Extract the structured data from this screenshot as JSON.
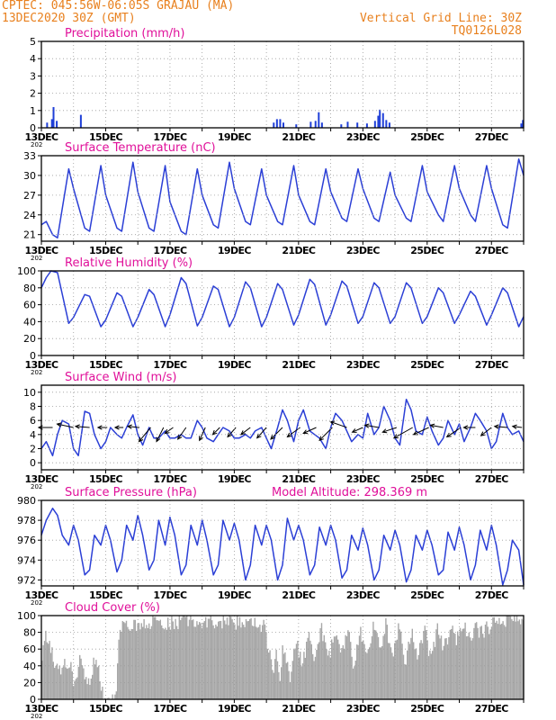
{
  "header": {
    "left1": "CPTEC:   045:56W-06:05S   GRAJAU (MA)",
    "left2": "13DEC2020 30Z (GMT)",
    "right1": "Vertical Grid Line: 30Z",
    "right2": "TQ0126L028"
  },
  "colors": {
    "header": "#e8801e",
    "title": "#e0109a",
    "line": "#2b3fd6",
    "bar": "#1f3fd8",
    "cloud": "#a8a8a8",
    "grid": "#9a9a9a"
  },
  "x_tick_labels": [
    "13DEC",
    "15DEC",
    "17DEC",
    "19DEC",
    "21DEC",
    "23DEC",
    "25DEC",
    "27DEC"
  ],
  "year_stub": "202",
  "model_altitude": "Model Altitude: 298.369 m",
  "chart_data": [
    {
      "type": "bar",
      "title": "Precipitation (mm/h)",
      "ylim": [
        0,
        5
      ],
      "yticks": [
        0,
        1,
        2,
        3,
        4,
        5
      ],
      "x_range_days": [
        0,
        15
      ],
      "bars": [
        [
          0.15,
          0.3
        ],
        [
          0.3,
          0.5
        ],
        [
          0.35,
          1.2
        ],
        [
          0.45,
          0.4
        ],
        [
          1.2,
          0.75
        ],
        [
          7.2,
          0.3
        ],
        [
          7.3,
          0.5
        ],
        [
          7.4,
          0.5
        ],
        [
          7.5,
          0.3
        ],
        [
          7.9,
          0.2
        ],
        [
          8.35,
          0.35
        ],
        [
          8.5,
          0.4
        ],
        [
          8.6,
          0.9
        ],
        [
          8.7,
          0.3
        ],
        [
          9.3,
          0.2
        ],
        [
          9.5,
          0.35
        ],
        [
          9.8,
          0.3
        ],
        [
          10.1,
          0.25
        ],
        [
          10.35,
          0.4
        ],
        [
          10.45,
          0.7
        ],
        [
          10.5,
          1.05
        ],
        [
          10.6,
          0.85
        ],
        [
          10.7,
          0.45
        ],
        [
          10.8,
          0.3
        ],
        [
          14.9,
          0.25
        ],
        [
          14.95,
          0.45
        ]
      ]
    },
    {
      "type": "line",
      "title": "Surface Temperature (nC)",
      "ylim": [
        20,
        33
      ],
      "yticks": [
        21,
        24,
        27,
        30,
        33
      ],
      "x_range_days": [
        0,
        15
      ],
      "x": [
        0,
        0.15,
        0.35,
        0.5,
        0.85,
        1.0,
        1.35,
        1.5,
        1.85,
        2.0,
        2.35,
        2.5,
        2.85,
        3.0,
        3.35,
        3.5,
        3.85,
        4.0,
        4.35,
        4.5,
        4.85,
        5.0,
        5.35,
        5.5,
        5.85,
        6.0,
        6.35,
        6.5,
        6.85,
        7.0,
        7.35,
        7.5,
        7.85,
        8.0,
        8.35,
        8.5,
        8.85,
        9.0,
        9.35,
        9.5,
        9.85,
        10.0,
        10.35,
        10.5,
        10.85,
        11.0,
        11.35,
        11.5,
        11.85,
        12.0,
        12.35,
        12.5,
        12.85,
        13.0,
        13.35,
        13.5,
        13.85,
        14.0,
        14.35,
        14.5,
        14.85,
        15.0
      ],
      "y": [
        22.5,
        23,
        21,
        20.5,
        31,
        28,
        22,
        21.5,
        31.5,
        27,
        22,
        21.5,
        32,
        27.5,
        22,
        21.5,
        31.5,
        26,
        21.5,
        21,
        31,
        27,
        22.5,
        22,
        32,
        28,
        23,
        22.5,
        31,
        27,
        23,
        22.5,
        31.5,
        27,
        23,
        22.5,
        31,
        27.5,
        23.5,
        23,
        31,
        28,
        23.5,
        23,
        30.5,
        27,
        23.5,
        23,
        31.5,
        27.5,
        24,
        23,
        31.5,
        28,
        24,
        23,
        31.5,
        28,
        22.5,
        22,
        32.5,
        30
      ]
    },
    {
      "type": "line",
      "title": "Relative Humidity (%)",
      "ylim": [
        0,
        100
      ],
      "yticks": [
        0,
        20,
        40,
        60,
        80,
        100
      ],
      "x_range_days": [
        0,
        15
      ],
      "x": [
        0,
        0.15,
        0.3,
        0.5,
        0.85,
        1.0,
        1.35,
        1.5,
        1.85,
        2.0,
        2.35,
        2.5,
        2.85,
        3.0,
        3.35,
        3.5,
        3.85,
        4.0,
        4.35,
        4.5,
        4.85,
        5.0,
        5.35,
        5.5,
        5.85,
        6.0,
        6.35,
        6.5,
        6.85,
        7.0,
        7.35,
        7.5,
        7.85,
        8.0,
        8.35,
        8.5,
        8.85,
        9.0,
        9.35,
        9.5,
        9.85,
        10.0,
        10.35,
        10.5,
        10.85,
        11.0,
        11.35,
        11.5,
        11.85,
        12.0,
        12.35,
        12.5,
        12.85,
        13.0,
        13.35,
        13.5,
        13.85,
        14.0,
        14.35,
        14.5,
        14.85,
        15.0
      ],
      "y": [
        80,
        92,
        100,
        98,
        38,
        45,
        72,
        70,
        34,
        42,
        74,
        70,
        34,
        45,
        78,
        72,
        34,
        48,
        92,
        85,
        35,
        45,
        82,
        78,
        34,
        45,
        87,
        80,
        34,
        45,
        85,
        78,
        36,
        48,
        90,
        84,
        36,
        48,
        88,
        82,
        38,
        46,
        86,
        80,
        38,
        46,
        86,
        80,
        38,
        46,
        80,
        74,
        38,
        48,
        76,
        70,
        36,
        48,
        80,
        74,
        34,
        46
      ]
    },
    {
      "type": "line",
      "title": "Surface Wind (m/s)",
      "ylim": [
        -1,
        11
      ],
      "yticks": [
        0,
        2,
        4,
        6,
        8,
        10
      ],
      "x_range_days": [
        0,
        15
      ],
      "x": [
        0,
        0.15,
        0.35,
        0.5,
        0.65,
        0.85,
        1.0,
        1.15,
        1.35,
        1.5,
        1.65,
        1.85,
        2.0,
        2.15,
        2.35,
        2.5,
        2.65,
        2.85,
        3.0,
        3.15,
        3.35,
        3.5,
        3.65,
        3.85,
        4.0,
        4.15,
        4.35,
        4.5,
        4.65,
        4.85,
        5.0,
        5.15,
        5.35,
        5.5,
        5.65,
        5.85,
        6.0,
        6.15,
        6.35,
        6.5,
        6.65,
        6.85,
        7.0,
        7.15,
        7.35,
        7.5,
        7.65,
        7.85,
        8.0,
        8.15,
        8.35,
        8.5,
        8.65,
        8.85,
        9.0,
        9.15,
        9.35,
        9.5,
        9.65,
        9.85,
        10.0,
        10.15,
        10.35,
        10.5,
        10.65,
        10.85,
        11.0,
        11.15,
        11.35,
        11.5,
        11.65,
        11.85,
        12.0,
        12.15,
        12.35,
        12.5,
        12.65,
        12.85,
        13.0,
        13.15,
        13.35,
        13.5,
        13.65,
        13.85,
        14.0,
        14.15,
        14.35,
        14.5,
        14.65,
        14.85,
        15.0
      ],
      "y": [
        2,
        3,
        1,
        4,
        6,
        5.5,
        2,
        1,
        7.3,
        7,
        4,
        2,
        3,
        5,
        4,
        3.5,
        5,
        6.8,
        4,
        2.5,
        5,
        3.5,
        3.5,
        4.5,
        3.5,
        3.5,
        4,
        3.5,
        3.5,
        6,
        5,
        3.5,
        3,
        4,
        5,
        4.5,
        3.5,
        3.5,
        4,
        3.5,
        4.5,
        5,
        3.5,
        2,
        5,
        7.5,
        6,
        3,
        6,
        7.5,
        4.5,
        4,
        3.5,
        2,
        5,
        7,
        6,
        4.5,
        3,
        4,
        3.5,
        7,
        4,
        5,
        8,
        6,
        3.5,
        2.5,
        9,
        7.5,
        4.5,
        4,
        6.5,
        4.5,
        2.5,
        3.5,
        6,
        4,
        5.5,
        3,
        5,
        7,
        6,
        4.5,
        2,
        3,
        7,
        5,
        4,
        4.5,
        3
      ]
    },
    {
      "type": "line",
      "title": "Surface Pressure (hPa)",
      "ylim": [
        971.4,
        980
      ],
      "yticks": [
        972,
        974,
        976,
        978,
        980
      ],
      "x_range_days": [
        0,
        15
      ],
      "x": [
        0,
        0.15,
        0.35,
        0.5,
        0.65,
        0.85,
        1.0,
        1.15,
        1.35,
        1.5,
        1.65,
        1.85,
        2.0,
        2.15,
        2.35,
        2.5,
        2.65,
        2.85,
        3.0,
        3.15,
        3.35,
        3.5,
        3.65,
        3.85,
        4.0,
        4.15,
        4.35,
        4.5,
        4.65,
        4.85,
        5.0,
        5.15,
        5.35,
        5.5,
        5.65,
        5.85,
        6.0,
        6.15,
        6.35,
        6.5,
        6.65,
        6.85,
        7.0,
        7.15,
        7.35,
        7.5,
        7.65,
        7.85,
        8.0,
        8.15,
        8.35,
        8.5,
        8.65,
        8.85,
        9.0,
        9.15,
        9.35,
        9.5,
        9.65,
        9.85,
        10.0,
        10.15,
        10.35,
        10.5,
        10.65,
        10.85,
        11.0,
        11.15,
        11.35,
        11.5,
        11.65,
        11.85,
        12.0,
        12.15,
        12.35,
        12.5,
        12.65,
        12.85,
        13.0,
        13.15,
        13.35,
        13.5,
        13.65,
        13.85,
        14.0,
        14.15,
        14.35,
        14.5,
        14.65,
        14.85,
        15.0
      ],
      "y": [
        976.5,
        978,
        979.2,
        978.5,
        976.5,
        975.5,
        977.5,
        976,
        972.5,
        973,
        976.5,
        975.5,
        977.5,
        976,
        972.8,
        974,
        977.5,
        976,
        978.5,
        976.5,
        973,
        974,
        978,
        975.5,
        978.3,
        976.5,
        972.5,
        973.5,
        977.5,
        975.5,
        978,
        976,
        972.5,
        973.5,
        978,
        976,
        977.7,
        976,
        972,
        973.5,
        977.5,
        975.5,
        977.5,
        976,
        972,
        973.5,
        978.2,
        976,
        977.5,
        976,
        972.5,
        973.5,
        977.3,
        975.5,
        977.5,
        976,
        972.2,
        973,
        976.5,
        975,
        977.2,
        975.5,
        972,
        973,
        976.5,
        975,
        977,
        975.5,
        971.8,
        973,
        976.5,
        975,
        977,
        975.5,
        972.5,
        973,
        976.8,
        975,
        977.3,
        975.5,
        972,
        973.5,
        977,
        975,
        977.5,
        975.5,
        971.5,
        973,
        976,
        975,
        971.5
      ]
    },
    {
      "type": "bar",
      "title": "Cloud Cover (%)",
      "ylim": [
        0,
        100
      ],
      "yticks": [
        0,
        20,
        40,
        60,
        80,
        100
      ],
      "x_range_days": [
        0,
        15
      ],
      "profile": [
        [
          0,
          50
        ],
        [
          0.1,
          75
        ],
        [
          0.3,
          55
        ],
        [
          0.5,
          30
        ],
        [
          0.7,
          40
        ],
        [
          0.9,
          45
        ],
        [
          1.0,
          10
        ],
        [
          1.2,
          60
        ],
        [
          1.3,
          40
        ],
        [
          1.4,
          15
        ],
        [
          1.5,
          20
        ],
        [
          1.6,
          45
        ],
        [
          1.75,
          35
        ],
        [
          1.9,
          2
        ],
        [
          2.0,
          2
        ],
        [
          2.3,
          2
        ],
        [
          2.4,
          85
        ],
        [
          2.8,
          90
        ],
        [
          3.5,
          92
        ],
        [
          4.0,
          90
        ],
        [
          4.5,
          95
        ],
        [
          5.0,
          92
        ],
        [
          5.5,
          93
        ],
        [
          6.0,
          92
        ],
        [
          6.5,
          90
        ],
        [
          6.9,
          88
        ],
        [
          7.0,
          70
        ],
        [
          7.2,
          30
        ],
        [
          7.3,
          60
        ],
        [
          7.4,
          20
        ],
        [
          7.5,
          65
        ],
        [
          7.7,
          25
        ],
        [
          7.9,
          70
        ],
        [
          8.1,
          40
        ],
        [
          8.3,
          75
        ],
        [
          8.5,
          50
        ],
        [
          8.7,
          85
        ],
        [
          8.9,
          45
        ],
        [
          9.1,
          80
        ],
        [
          9.3,
          50
        ],
        [
          9.5,
          85
        ],
        [
          9.7,
          40
        ],
        [
          9.9,
          88
        ],
        [
          10.1,
          45
        ],
        [
          10.3,
          90
        ],
        [
          10.5,
          60
        ],
        [
          10.7,
          90
        ],
        [
          10.9,
          50
        ],
        [
          11.1,
          88
        ],
        [
          11.3,
          40
        ],
        [
          11.5,
          85
        ],
        [
          11.7,
          50
        ],
        [
          11.9,
          88
        ],
        [
          12.1,
          45
        ],
        [
          12.3,
          86
        ],
        [
          12.5,
          60
        ],
        [
          12.7,
          85
        ],
        [
          12.9,
          70
        ],
        [
          13.1,
          88
        ],
        [
          13.3,
          75
        ],
        [
          13.5,
          85
        ],
        [
          13.7,
          80
        ],
        [
          14.0,
          90
        ],
        [
          14.3,
          92
        ],
        [
          14.6,
          95
        ],
        [
          15.0,
          97
        ]
      ]
    }
  ],
  "wind_vectors": [
    {
      "x": 0.35,
      "u": -0.6,
      "v": 0.0
    },
    {
      "x": 1.0,
      "u": -0.7,
      "v": 0.15
    },
    {
      "x": 1.5,
      "u": -0.6,
      "v": 0.05
    },
    {
      "x": 2.05,
      "u": -0.4,
      "v": 0.0
    },
    {
      "x": 2.55,
      "u": -0.35,
      "v": 0.0
    },
    {
      "x": 3.05,
      "u": -0.5,
      "v": 0.05
    },
    {
      "x": 3.4,
      "u": -0.5,
      "v": -0.6
    },
    {
      "x": 3.8,
      "u": -0.3,
      "v": -0.6
    },
    {
      "x": 4.1,
      "u": -0.35,
      "v": -0.25
    },
    {
      "x": 4.5,
      "u": -0.35,
      "v": -0.5
    },
    {
      "x": 5.1,
      "u": -0.25,
      "v": -0.55
    },
    {
      "x": 5.55,
      "u": -0.3,
      "v": -0.3
    },
    {
      "x": 6.05,
      "u": -0.35,
      "v": -0.4
    },
    {
      "x": 6.5,
      "u": -0.4,
      "v": -0.3
    },
    {
      "x": 7.0,
      "u": -0.4,
      "v": -0.45
    },
    {
      "x": 7.5,
      "u": -0.5,
      "v": -0.5
    },
    {
      "x": 8.05,
      "u": -0.55,
      "v": -0.4
    },
    {
      "x": 8.55,
      "u": -0.55,
      "v": -0.25
    },
    {
      "x": 9.05,
      "u": -0.55,
      "v": -0.55
    },
    {
      "x": 9.5,
      "u": -0.7,
      "v": 0.25
    },
    {
      "x": 10.0,
      "u": -0.45,
      "v": -0.2
    },
    {
      "x": 10.5,
      "u": -0.6,
      "v": 0.1
    },
    {
      "x": 11.05,
      "u": -0.6,
      "v": -0.2
    },
    {
      "x": 11.55,
      "u": -0.8,
      "v": -0.45
    },
    {
      "x": 12.05,
      "u": -0.65,
      "v": -0.3
    },
    {
      "x": 12.5,
      "u": -0.55,
      "v": 0.1
    },
    {
      "x": 13.05,
      "u": -0.6,
      "v": -0.4
    },
    {
      "x": 13.5,
      "u": -0.5,
      "v": 0.0
    },
    {
      "x": 14.0,
      "u": -0.45,
      "v": -0.35
    },
    {
      "x": 14.5,
      "u": -0.55,
      "v": 0.05
    },
    {
      "x": 14.95,
      "u": -0.4,
      "v": 0.05
    }
  ]
}
